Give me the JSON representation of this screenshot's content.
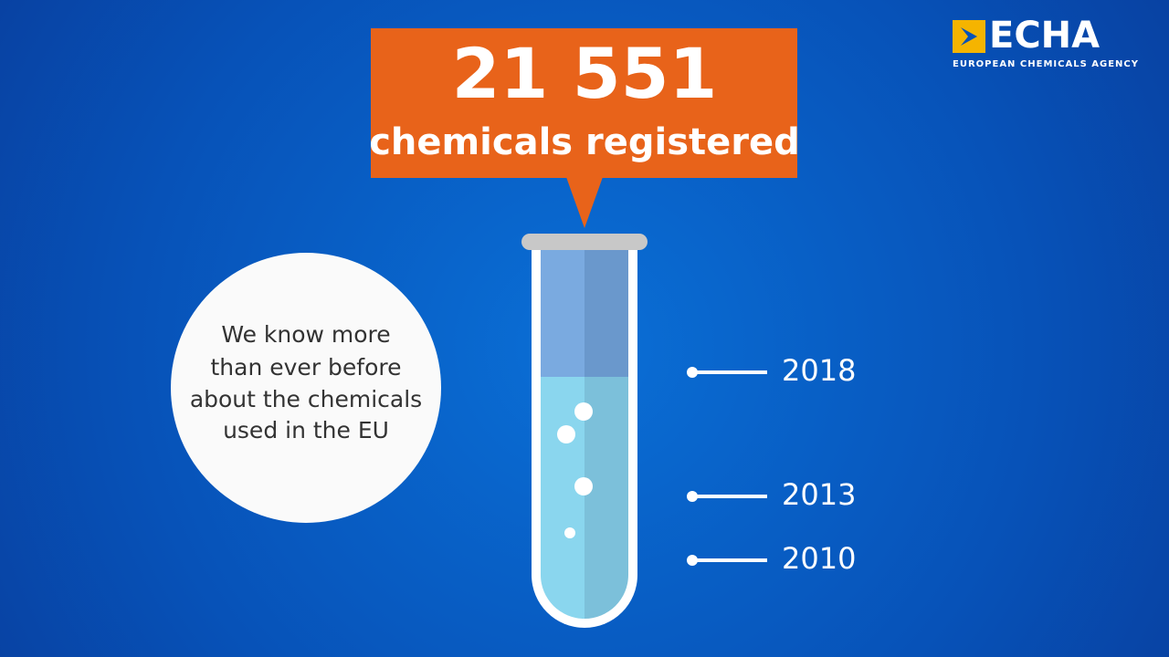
{
  "logo": {
    "name": "ECHA",
    "subtitle": "EUROPEAN CHEMICALS AGENCY"
  },
  "callout": {
    "number": "21 551",
    "label": "chemicals registered"
  },
  "bubble": {
    "lines": [
      "We know more",
      "than ever before",
      "about the chemicals",
      "used in the EU"
    ]
  },
  "timeline": [
    "2018",
    "2013",
    "2010"
  ]
}
